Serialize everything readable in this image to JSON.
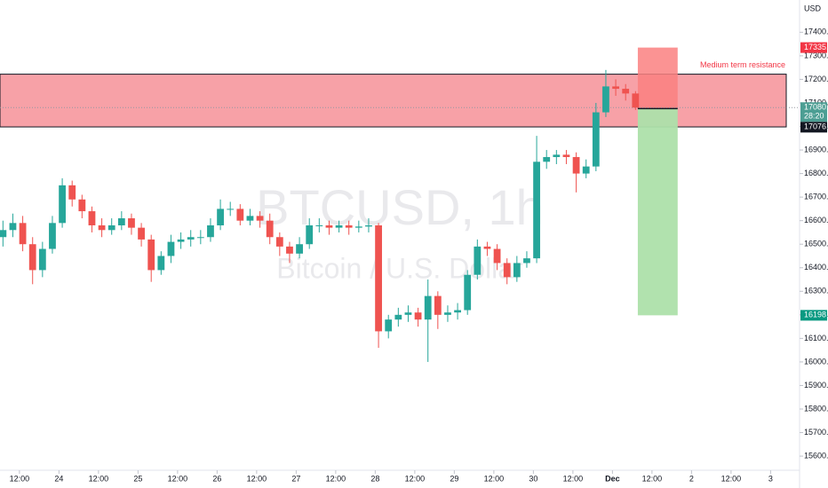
{
  "chart_data": {
    "type": "candlestick",
    "watermark": "BTCUSD, 1h",
    "watermark_subtitle": "Bitcoin / U.S. Dollar",
    "currency": "USD",
    "up_color": "#26a69a",
    "down_color": "#ef5350",
    "x": [
      -5,
      -2,
      1,
      4,
      7,
      10,
      13,
      16,
      19,
      22,
      25,
      28,
      31,
      34,
      37,
      40,
      43,
      46,
      49,
      52,
      55,
      58,
      61,
      64,
      67,
      70,
      73,
      76,
      79,
      82,
      85,
      88,
      91,
      94,
      97,
      100,
      103,
      106,
      109,
      112,
      115,
      118,
      121,
      124,
      127,
      130,
      133,
      136,
      139,
      142,
      145,
      148,
      151,
      154,
      157,
      160,
      163,
      166,
      169,
      172,
      175,
      178,
      181,
      184,
      187
    ],
    "open": [
      16530,
      16560,
      16590,
      16500,
      16390,
      16480,
      16590,
      16750,
      16690,
      16640,
      16580,
      16560,
      16580,
      16610,
      16570,
      16520,
      16390,
      16450,
      16510,
      16520,
      16530,
      16530,
      16580,
      16650,
      16650,
      16600,
      16620,
      16600,
      16530,
      16490,
      16460,
      16500,
      16580,
      16580,
      16570,
      16580,
      16570,
      16575,
      16580,
      16130,
      16180,
      16200,
      16210,
      16180,
      16280,
      16200,
      16210,
      16220,
      16370,
      16490,
      16480,
      16420,
      16360,
      16420,
      16440,
      16850,
      16870,
      16880,
      16870,
      16800,
      16830,
      17060,
      17170,
      17160,
      17140
    ],
    "high": [
      16600,
      16630,
      16620,
      16530,
      16510,
      16620,
      16780,
      16770,
      16710,
      16660,
      16610,
      16610,
      16640,
      16630,
      16590,
      16540,
      16470,
      16540,
      16550,
      16560,
      16560,
      16610,
      16690,
      16680,
      16670,
      16650,
      16640,
      16630,
      16550,
      16510,
      16530,
      16610,
      16610,
      16600,
      16600,
      16600,
      16600,
      16610,
      16590,
      16200,
      16230,
      16240,
      16230,
      16350,
      16300,
      16240,
      16250,
      16390,
      16520,
      16510,
      16500,
      16440,
      16450,
      16470,
      16960,
      16900,
      16900,
      16900,
      16890,
      16860,
      17100,
      17240,
      17200,
      17180,
      17150
    ],
    "low": [
      16490,
      16530,
      16470,
      16330,
      16360,
      16460,
      16570,
      16660,
      16610,
      16550,
      16530,
      16540,
      16560,
      16540,
      16490,
      16340,
      16370,
      16420,
      16480,
      16490,
      16500,
      16510,
      16560,
      16620,
      16580,
      16580,
      16570,
      16500,
      16450,
      16420,
      16440,
      16480,
      16550,
      16540,
      16550,
      16540,
      16550,
      16550,
      16060,
      16100,
      16150,
      16170,
      16150,
      16000,
      16140,
      16170,
      16180,
      16200,
      16350,
      16450,
      16390,
      16330,
      16340,
      16400,
      16420,
      16820,
      16840,
      16840,
      16720,
      16780,
      16810,
      17040,
      17130,
      17110,
      17070
    ],
    "close": [
      16560,
      16590,
      16500,
      16390,
      16480,
      16590,
      16750,
      16690,
      16640,
      16580,
      16560,
      16580,
      16610,
      16570,
      16520,
      16390,
      16450,
      16510,
      16520,
      16530,
      16530,
      16580,
      16650,
      16650,
      16600,
      16620,
      16600,
      16530,
      16490,
      16460,
      16500,
      16580,
      16580,
      16570,
      16580,
      16570,
      16575,
      16580,
      16130,
      16180,
      16200,
      16210,
      16180,
      16280,
      16200,
      16210,
      16220,
      16370,
      16490,
      16480,
      16420,
      16360,
      16420,
      16440,
      16850,
      16870,
      16880,
      16870,
      16800,
      16830,
      17060,
      17170,
      17160,
      17140,
      17080
    ],
    "xlim": [
      -5.9,
      236.8
    ],
    "xticks": [
      {
        "value": 0,
        "label": "12:00"
      },
      {
        "value": 12,
        "label": "24"
      },
      {
        "value": 24,
        "label": "12:00"
      },
      {
        "value": 36,
        "label": "25"
      },
      {
        "value": 48,
        "label": "12:00"
      },
      {
        "value": 60,
        "label": "26"
      },
      {
        "value": 72,
        "label": "12:00"
      },
      {
        "value": 84,
        "label": "27"
      },
      {
        "value": 96,
        "label": "12:00"
      },
      {
        "value": 108,
        "label": "28"
      },
      {
        "value": 120,
        "label": "12:00"
      },
      {
        "value": 132,
        "label": "29"
      },
      {
        "value": 144,
        "label": "12:00"
      },
      {
        "value": 156,
        "label": "30"
      },
      {
        "value": 168,
        "label": "12:00"
      },
      {
        "value": 180,
        "label": "Dec"
      },
      {
        "value": 192,
        "label": "12:00"
      },
      {
        "value": 204,
        "label": "2"
      },
      {
        "value": 216,
        "label": "12:00"
      },
      {
        "value": 228,
        "label": "3"
      }
    ],
    "ylim": [
      15540,
      17537
    ],
    "yticks": [
      {
        "value": 15600,
        "label": "15600.00"
      },
      {
        "value": 15700,
        "label": "15700.00"
      },
      {
        "value": 15800,
        "label": "15800.00"
      },
      {
        "value": 15900,
        "label": "15900.00"
      },
      {
        "value": 16000,
        "label": "16000.00"
      },
      {
        "value": 16100,
        "label": "16100.00"
      },
      {
        "value": 16200,
        "label": "16200.00"
      },
      {
        "value": 16300,
        "label": "16300.00"
      },
      {
        "value": 16400,
        "label": "16400.00"
      },
      {
        "value": 16500,
        "label": "16500.00"
      },
      {
        "value": 16600,
        "label": "16600.00"
      },
      {
        "value": 16700,
        "label": "16700.00"
      },
      {
        "value": 16800,
        "label": "16800.00"
      },
      {
        "value": 16900,
        "label": "16900.00"
      },
      {
        "value": 17000,
        "label": "17000.00"
      },
      {
        "value": 17100,
        "label": "17100.00"
      },
      {
        "value": 17200,
        "label": "17200.00"
      },
      {
        "value": 17300,
        "label": "17300.00"
      },
      {
        "value": 17400,
        "label": "17400.00"
      }
    ],
    "zone": {
      "text": "Medium term resistance",
      "from": 16998,
      "to": 17222,
      "color": "#f7a1a7"
    },
    "position": {
      "x": [
        187.7,
        199.8
      ],
      "stop": 17335,
      "entry": 17076,
      "target": 16198,
      "stop_color": "#fa8080",
      "target_color": "#ade0aa",
      "value_labels": {
        "stop": "17335.00",
        "entry": "17076.00",
        "target": "16198.00"
      }
    },
    "last_price": {
      "value": 17080,
      "label": "17080.00",
      "countdown": "28:20"
    }
  }
}
